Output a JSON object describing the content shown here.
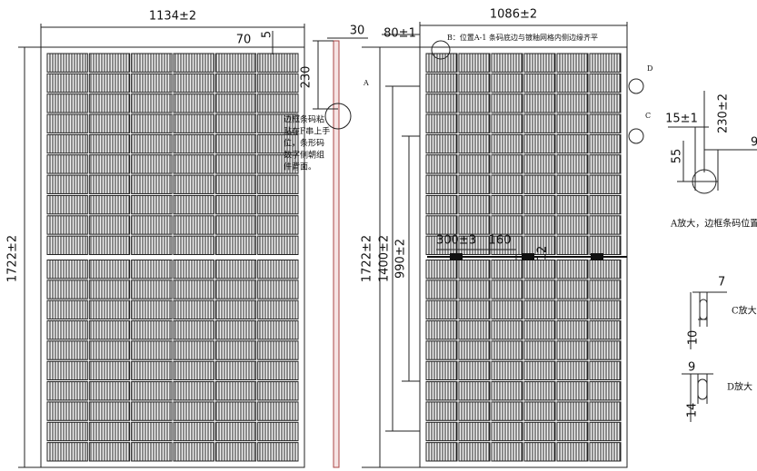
{
  "left_view": {
    "width_dim": "1134±2",
    "offset_dim": "70",
    "frame_dim": "5",
    "height_dim": "1722±2"
  },
  "side_view": {
    "thickness_dim": "30",
    "barcode_dim": "230",
    "detail_label": "A",
    "note_lines": [
      "边框条码粘",
      "贴在F串上手",
      "位，条形码",
      "数字侧朝组",
      "件背面。"
    ]
  },
  "back_view": {
    "offset_dim": "80±1",
    "note_b": "B：位置A-1 条码底边与镀釉网格内侧边缘齐平",
    "width_dim": "1086±2",
    "label_d": "D",
    "label_c": "C",
    "height_dim": "1722±2",
    "hole_dim_outer": "1400±2",
    "hole_dim_inner": "990±2",
    "cable_dim": "300±3",
    "spacing_dim": "160",
    "jbox_dim": "12"
  },
  "detail_a": {
    "offset": "15±1",
    "height": "230±2",
    "width": "55",
    "cut": "9",
    "caption": "A放大，边框条码位置"
  },
  "detail_c": {
    "width": "7",
    "height": "10",
    "caption": "C放大"
  },
  "detail_d": {
    "width": "9",
    "height": "14",
    "caption": "D放大"
  }
}
